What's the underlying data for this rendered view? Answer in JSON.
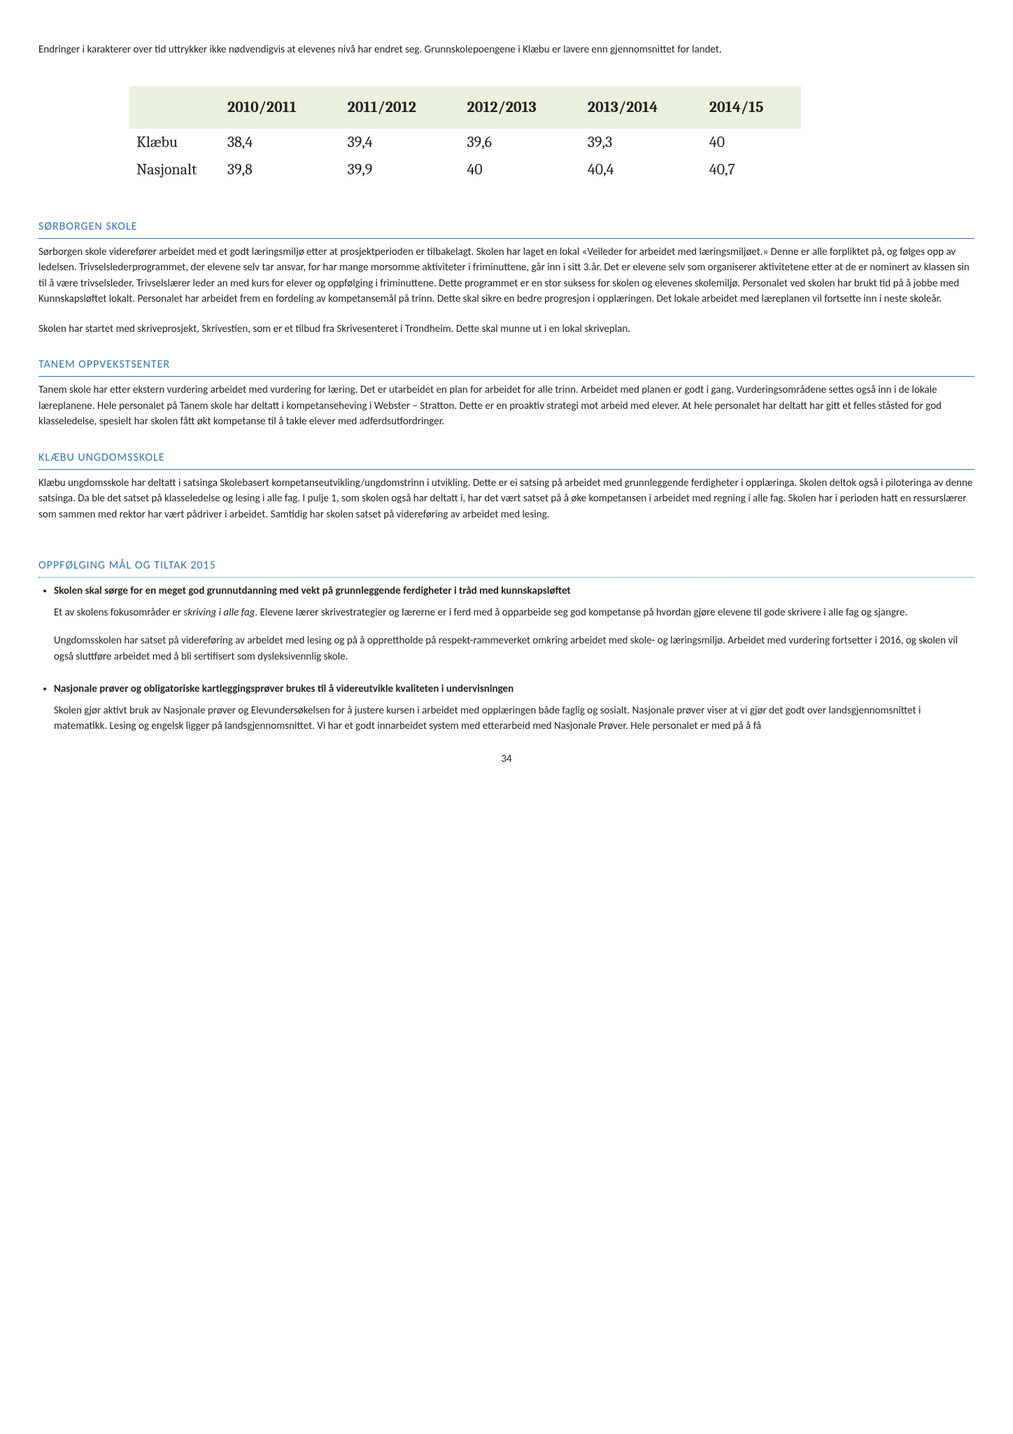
{
  "intro": "Endringer i karakterer over tid uttrykker ikke nødvendigvis at elevenes nivå har endret seg. Grunnskolepoengene i Klæbu er lavere enn gjennomsnittet for landet.",
  "table": {
    "headers": [
      "",
      "2010/2011",
      "2011/2012",
      "2012/2013",
      "2013/2014",
      "2014/15"
    ],
    "rows": [
      [
        "Klæbu",
        "38,4",
        "39,4",
        "39,6",
        "39,3",
        "40"
      ],
      [
        "Nasjonalt",
        "39,8",
        "39,9",
        "40",
        "40,4",
        "40,7"
      ]
    ]
  },
  "sections": {
    "sorborgen": {
      "title": "SØRBORGEN SKOLE",
      "p1": "Sørborgen skole viderefører arbeidet med et godt læringsmiljø etter at prosjektperioden er tilbakelagt. Skolen har laget en lokal «Veileder for arbeidet med læringsmiljøet.» Denne er alle forpliktet på, og følges opp av ledelsen. Trivselslederprogrammet, der elevene selv tar ansvar, for har mange morsomme aktiviteter i friminuttene, går inn i sitt 3.år. Det er elevene selv som organiserer aktivitetene etter at de er nominert av klassen sin til å være trivselsleder. Trivselslærer leder an med kurs for elever og oppfølging i friminuttene. Dette programmet er en stor suksess for skolen og elevenes skolemiljø. Personalet ved skolen har brukt tid på å jobbe med Kunnskapsløftet lokalt. Personalet har arbeidet frem en fordeling av kompetansemål på trinn. Dette skal sikre en bedre progresjon i opplæringen. Det lokale arbeidet med læreplanen vil fortsette inn i neste skoleår.",
      "p2": "Skolen har startet med skriveprosjekt, Skrivestien, som er et tilbud fra Skrivesenteret i Trondheim. Dette skal munne ut i en lokal skriveplan."
    },
    "tanem": {
      "title": "TANEM OPPVEKSTSENTER",
      "p1": "Tanem skole har etter ekstern vurdering arbeidet med vurdering for læring. Det er utarbeidet en plan for arbeidet for alle trinn. Arbeidet med planen er godt i gang. Vurderingsområdene settes også inn i de lokale læreplanene. Hele personalet på Tanem skole har deltatt i kompetanseheving i Webster – Stratton. Dette er en proaktiv strategi mot arbeid med elever. At hele personalet har deltatt har gitt et felles ståsted for god klasseledelse, spesielt har skolen fått økt kompetanse til å takle elever med adferdsutfordringer."
    },
    "klaebu": {
      "title": "KLÆBU UNGDOMSSKOLE",
      "p1": "Klæbu ungdomsskole har deltatt i satsinga Skolebasert kompetanseutvikling/ungdomstrinn i utvikling. Dette er ei satsing på arbeidet med grunnleggende ferdigheter i opplæringa. Skolen deltok også i piloteringa av denne satsinga. Da ble det satset på klasseledelse og lesing i alle fag. I pulje 1, som skolen også har deltatt i, har det vært satset på å øke kompetansen i arbeidet med regning i alle fag. Skolen har i perioden hatt en ressurslærer som sammen med rektor har vært pådriver i arbeidet. Samtidig har skolen satset på videreføring av arbeidet med lesing."
    }
  },
  "oppfolging": {
    "title": "OPPFØLGING MÅL OG TILTAK 2015",
    "items": [
      {
        "bold": "Skolen skal sørge for en meget god grunnutdanning med vekt på grunnleggende ferdigheter i tråd med kunnskapsløftet",
        "p1_pre": "Et av skolens fokusområder er ",
        "p1_italic": "skriving i alle fag",
        "p1_post": ". Elevene lærer skrivestrategier og lærerne er i ferd med å opparbeide seg god kompetanse på hvordan gjøre elevene til gode skrivere i alle fag og sjangre.",
        "p2": "Ungdomsskolen har satset på videreføring av arbeidet med lesing og på å opprettholde på respekt-rammeverket omkring arbeidet med skole- og læringsmiljø. Arbeidet med vurdering fortsetter i 2016, og skolen vil også sluttføre arbeidet med å bli sertifisert som dysleksivennlig skole."
      },
      {
        "bold": "Nasjonale prøver og obligatoriske kartleggingsprøver brukes til å videreutvikle kvaliteten i undervisningen",
        "p1": "Skolen gjør aktivt bruk av Nasjonale prøver og Elevundersøkelsen for å justere kursen i arbeidet med opplæringen både faglig og sosialt. Nasjonale prøver viser at vi gjør det godt over landsgjennomsnittet i matematikk. Lesing og engelsk ligger på landsgjennomsnittet. Vi har et godt innarbeidet system med etterarbeid med Nasjonale Prøver. Hele personalet er med på å få"
      }
    ]
  },
  "page_number": "34"
}
